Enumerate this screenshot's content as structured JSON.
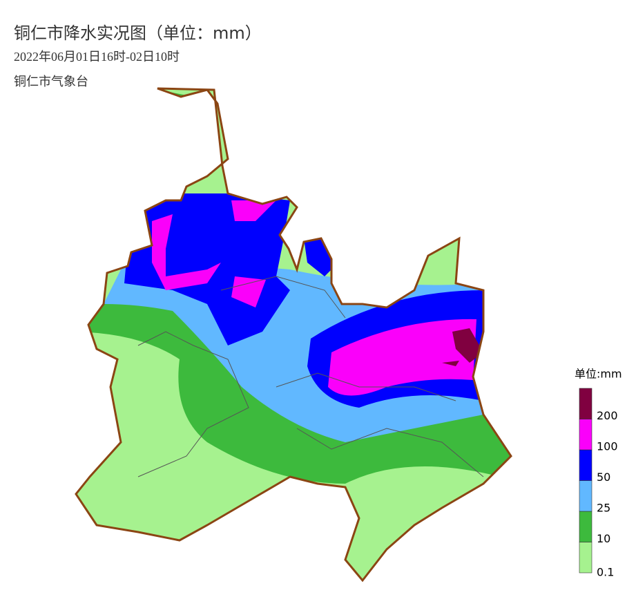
{
  "header": {
    "title": "铜仁市降水实况图（单位：mm）",
    "subtitle": "2022年06月01日16时-02日10时",
    "agency": "铜仁市气象台"
  },
  "legend": {
    "title": "单位:mm",
    "levels": [
      {
        "value": 0.1,
        "color": "#a6f28f"
      },
      {
        "value": 10,
        "color": "#3dba3d"
      },
      {
        "value": 25,
        "color": "#61b8ff"
      },
      {
        "value": 50,
        "color": "#0000fe"
      },
      {
        "value": 100,
        "color": "#fa00fa"
      },
      {
        "value": 200,
        "color": "#800040"
      }
    ]
  }
}
